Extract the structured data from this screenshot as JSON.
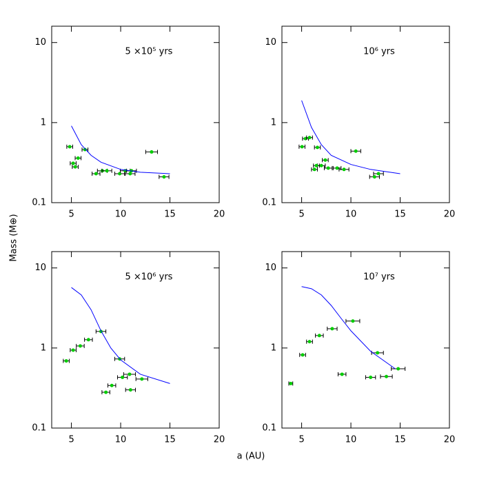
{
  "xlabel": "a (AU)",
  "ylabel": "Mass (M⊕)",
  "chart_data": [
    {
      "type": "scatter",
      "title": "5 ×10⁵ yrs",
      "xlim": [
        3,
        20
      ],
      "ylim": [
        0.1,
        16
      ],
      "xticks": [
        5,
        10,
        15,
        20
      ],
      "yticks": [
        0.1,
        1,
        10
      ],
      "log_y": true,
      "points": {
        "color": "#00cc00",
        "x": [
          4.83,
          6.38,
          5.68,
          5.18,
          5.39,
          7.5,
          8.14,
          8.6,
          9.9,
          10.46,
          11.1,
          10.96,
          13.14,
          14.4
        ],
        "y": [
          0.5,
          0.46,
          0.36,
          0.31,
          0.28,
          0.23,
          0.25,
          0.25,
          0.23,
          0.25,
          0.25,
          0.23,
          0.43,
          0.21
        ],
        "xerr": [
          0.3,
          0.3,
          0.3,
          0.3,
          0.3,
          0.4,
          0.5,
          0.5,
          0.5,
          0.5,
          0.5,
          0.5,
          0.6,
          0.5
        ]
      },
      "curve": {
        "color": "#0000ff",
        "x": [
          5,
          6,
          7,
          8,
          10,
          12,
          15
        ],
        "y": [
          0.91,
          0.53,
          0.39,
          0.32,
          0.26,
          0.24,
          0.23
        ]
      }
    },
    {
      "type": "scatter",
      "title": "10⁶ yrs",
      "xlim": [
        3,
        20
      ],
      "ylim": [
        0.1,
        16
      ],
      "xticks": [
        5,
        10,
        15,
        20
      ],
      "yticks": [
        0.1,
        1,
        10
      ],
      "log_y": true,
      "points": {
        "color": "#00cc00",
        "x": [
          5.04,
          5.39,
          5.8,
          6.6,
          7.4,
          7.0,
          6.5,
          6.3,
          7.7,
          8.6,
          9.3,
          10.5,
          12.4,
          12.8
        ],
        "y": [
          0.5,
          0.63,
          0.65,
          0.49,
          0.34,
          0.29,
          0.29,
          0.26,
          0.27,
          0.27,
          0.26,
          0.44,
          0.21,
          0.23
        ],
        "xerr": [
          0.3,
          0.3,
          0.3,
          0.3,
          0.3,
          0.4,
          0.3,
          0.3,
          0.4,
          0.4,
          0.5,
          0.5,
          0.5,
          0.5
        ]
      },
      "curve": {
        "color": "#0000ff",
        "x": [
          5,
          6,
          7,
          8,
          10,
          12,
          15
        ],
        "y": [
          1.89,
          0.87,
          0.53,
          0.39,
          0.3,
          0.26,
          0.23
        ]
      }
    },
    {
      "type": "scatter",
      "title": "5 ×10⁶ yrs",
      "xlim": [
        3,
        20
      ],
      "ylim": [
        0.1,
        16
      ],
      "xticks": [
        5,
        10,
        15,
        20
      ],
      "yticks": [
        0.1,
        1,
        10
      ],
      "log_y": true,
      "points": {
        "color": "#00cc00",
        "x": [
          4.48,
          5.18,
          5.9,
          6.73,
          8.0,
          9.9,
          10.18,
          10.9,
          9.1,
          8.5,
          11.0,
          12.15
        ],
        "y": [
          0.69,
          0.94,
          1.06,
          1.27,
          1.61,
          0.73,
          0.43,
          0.47,
          0.34,
          0.28,
          0.3,
          0.41
        ],
        "xerr": [
          0.3,
          0.3,
          0.4,
          0.4,
          0.5,
          0.5,
          0.5,
          0.6,
          0.4,
          0.4,
          0.5,
          0.6
        ]
      },
      "curve": {
        "color": "#0000ff",
        "x": [
          5,
          6,
          7,
          8,
          9,
          10,
          12,
          15
        ],
        "y": [
          5.7,
          4.6,
          3.0,
          1.64,
          1.0,
          0.71,
          0.47,
          0.36
        ]
      }
    },
    {
      "type": "scatter",
      "title": "10⁷ yrs",
      "xlim": [
        3,
        20
      ],
      "ylim": [
        0.1,
        16
      ],
      "xticks": [
        5,
        10,
        15,
        20
      ],
      "yticks": [
        0.1,
        1,
        10
      ],
      "log_y": true,
      "points": {
        "color": "#00cc00",
        "x": [
          3.9,
          5.1,
          5.8,
          6.8,
          8.1,
          10.2,
          12.7,
          9.1,
          12.0,
          13.6,
          14.8
        ],
        "y": [
          0.36,
          0.82,
          1.2,
          1.43,
          1.74,
          2.17,
          0.87,
          0.47,
          0.43,
          0.44,
          0.55
        ],
        "xerr": [
          0.2,
          0.3,
          0.3,
          0.4,
          0.5,
          0.7,
          0.6,
          0.4,
          0.5,
          0.6,
          0.7
        ]
      },
      "curve": {
        "color": "#0000ff",
        "x": [
          5,
          6,
          7,
          8,
          9,
          10,
          12,
          14.5
        ],
        "y": [
          5.85,
          5.5,
          4.6,
          3.4,
          2.35,
          1.64,
          0.91,
          0.55
        ]
      }
    }
  ]
}
